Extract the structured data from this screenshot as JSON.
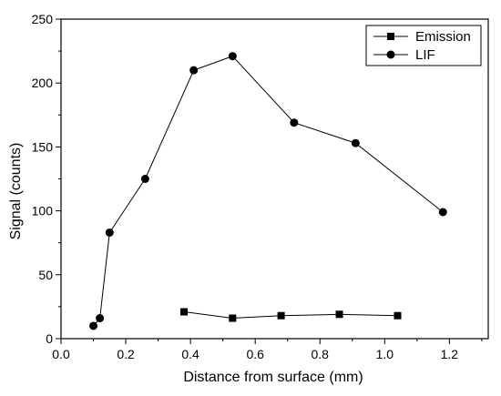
{
  "chart_data": {
    "type": "line",
    "title": "",
    "xlabel": "Distance from surface (mm)",
    "ylabel": "Signal (counts)",
    "xlim": [
      0.0,
      1.32
    ],
    "ylim": [
      0,
      250
    ],
    "x_ticks": [
      "0.0",
      "0.2",
      "0.4",
      "0.6",
      "0.8",
      "1.0",
      "1.2"
    ],
    "y_ticks": [
      "0",
      "50",
      "100",
      "150",
      "200",
      "250"
    ],
    "grid": false,
    "legend_position": "top-right",
    "series": [
      {
        "name": "Emission",
        "marker": "square",
        "color": "#000000",
        "x": [
          0.38,
          0.53,
          0.68,
          0.86,
          1.04
        ],
        "y": [
          21,
          16,
          18,
          19,
          18
        ]
      },
      {
        "name": "LIF",
        "marker": "circle",
        "color": "#000000",
        "x": [
          0.1,
          0.12,
          0.15,
          0.26,
          0.41,
          0.53,
          0.72,
          0.91,
          1.18
        ],
        "y": [
          10,
          16,
          83,
          125,
          210,
          221,
          169,
          153,
          99
        ]
      }
    ]
  }
}
